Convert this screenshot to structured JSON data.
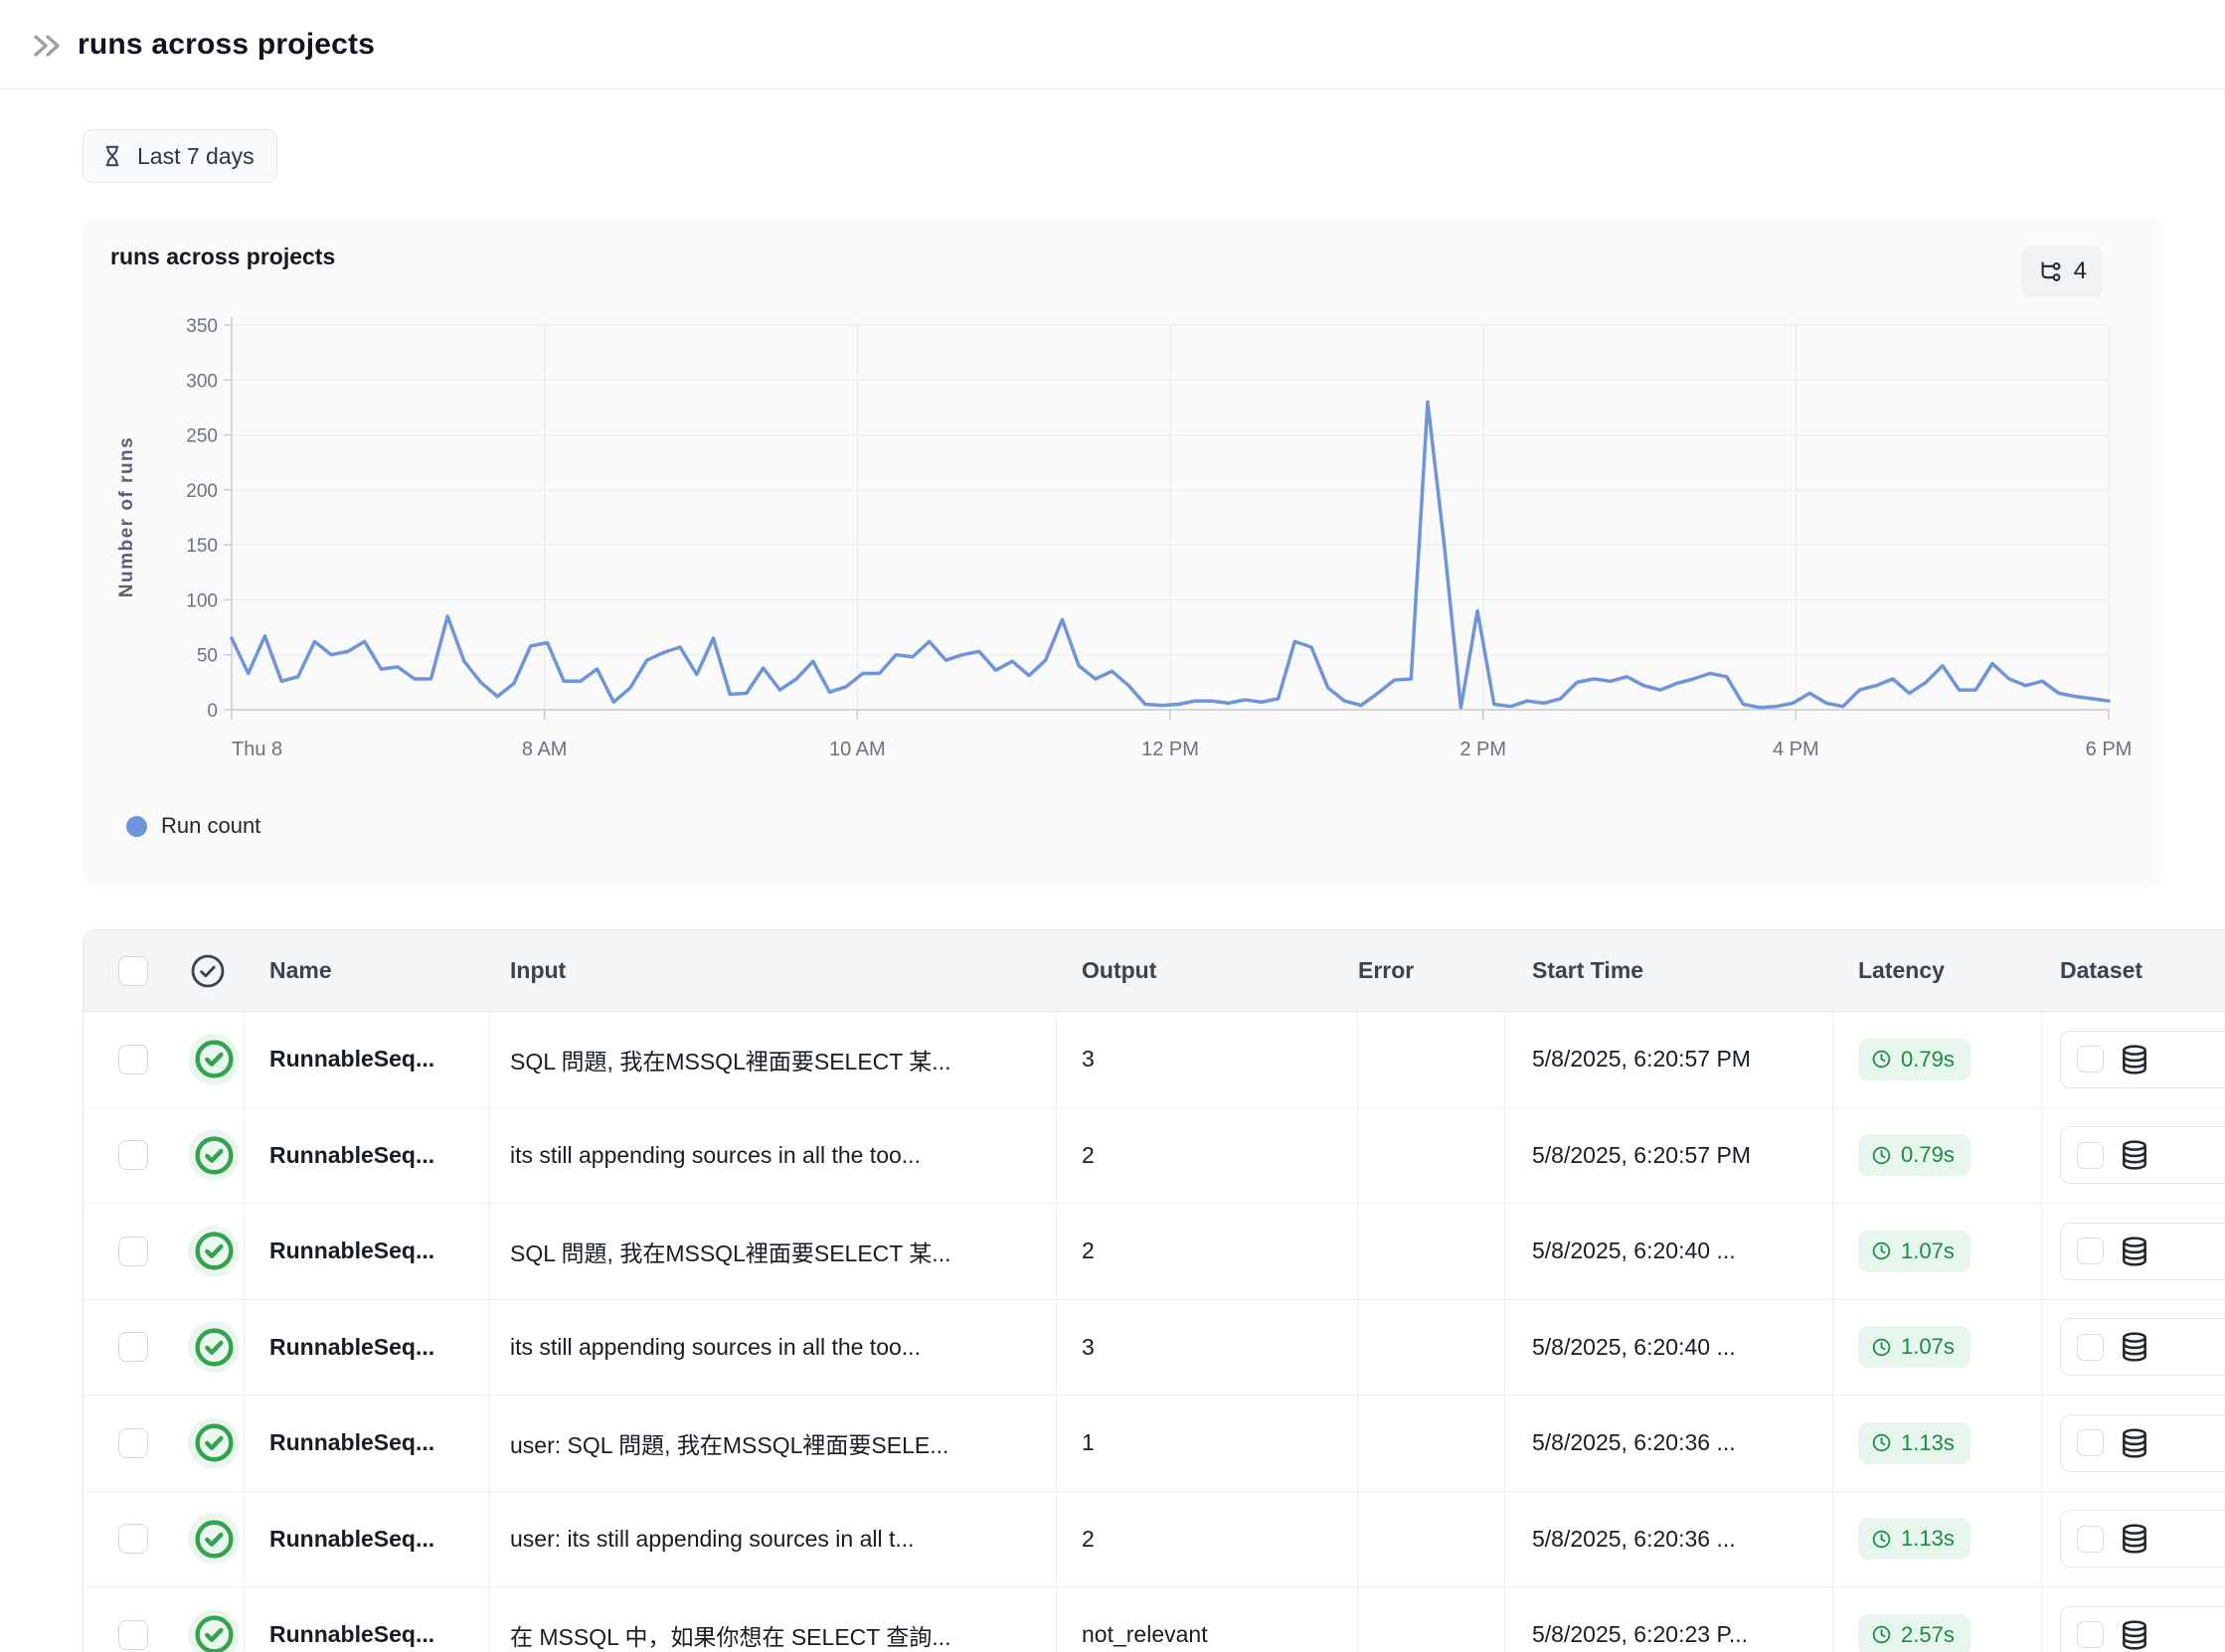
{
  "topbar": {
    "title": "runs across projects"
  },
  "toolbar": {
    "time_filter_label": "Last 7 days"
  },
  "chart_card": {
    "title": "runs across projects",
    "trace_badge_count": "4"
  },
  "chart_data": {
    "type": "line",
    "title": "runs across projects",
    "xlabel": "",
    "ylabel": "Number of runs",
    "ylim": [
      0,
      350
    ],
    "yticks": [
      0,
      50,
      100,
      150,
      200,
      250,
      300,
      350
    ],
    "xticks": [
      "Thu 8",
      "8 AM",
      "10 AM",
      "12 PM",
      "2 PM",
      "4 PM",
      "6 PM"
    ],
    "grid": true,
    "legend_position": "bottom",
    "series": [
      {
        "name": "Run count",
        "color": "#6e95da",
        "values": [
          65,
          33,
          67,
          26,
          30,
          62,
          50,
          53,
          62,
          37,
          39,
          28,
          28,
          85,
          44,
          25,
          12,
          24,
          58,
          61,
          26,
          26,
          37,
          7,
          20,
          45,
          52,
          57,
          32,
          65,
          14,
          15,
          38,
          18,
          28,
          44,
          16,
          21,
          33,
          33,
          50,
          48,
          62,
          45,
          50,
          53,
          36,
          44,
          31,
          45,
          82,
          40,
          28,
          35,
          22,
          5,
          4,
          5,
          8,
          8,
          6,
          9,
          7,
          10,
          62,
          57,
          20,
          8,
          4,
          15,
          27,
          28,
          280,
          150,
          2,
          90,
          5,
          3,
          8,
          6,
          10,
          25,
          28,
          26,
          30,
          22,
          18,
          24,
          28,
          33,
          30,
          5,
          2,
          3,
          6,
          15,
          6,
          3,
          18,
          22,
          28,
          15,
          25,
          40,
          18,
          18,
          42,
          28,
          22,
          26,
          15,
          12,
          10,
          8
        ]
      }
    ]
  },
  "table": {
    "columns": {
      "name": "Name",
      "input": "Input",
      "output": "Output",
      "error": "Error",
      "start_time": "Start Time",
      "latency": "Latency",
      "dataset": "Dataset"
    },
    "rows": [
      {
        "name": "RunnableSeq...",
        "input": "SQL 問題, 我在MSSQL裡面要SELECT 某...",
        "output": "3",
        "error": "",
        "start_time": "5/8/2025, 6:20:57 PM",
        "latency": "0.79s"
      },
      {
        "name": "RunnableSeq...",
        "input": "its still appending sources in all the too...",
        "output": "2",
        "error": "",
        "start_time": "5/8/2025, 6:20:57 PM",
        "latency": "0.79s"
      },
      {
        "name": "RunnableSeq...",
        "input": "SQL 問題, 我在MSSQL裡面要SELECT 某...",
        "output": "2",
        "error": "",
        "start_time": "5/8/2025, 6:20:40 ...",
        "latency": "1.07s"
      },
      {
        "name": "RunnableSeq...",
        "input": "its still appending sources in all the too...",
        "output": "3",
        "error": "",
        "start_time": "5/8/2025, 6:20:40 ...",
        "latency": "1.07s"
      },
      {
        "name": "RunnableSeq...",
        "input": "user: SQL 問題, 我在MSSQL裡面要SELE...",
        "output": "1",
        "error": "",
        "start_time": "5/8/2025, 6:20:36 ...",
        "latency": "1.13s"
      },
      {
        "name": "RunnableSeq...",
        "input": "user: its still appending sources in all t...",
        "output": "2",
        "error": "",
        "start_time": "5/8/2025, 6:20:36 ...",
        "latency": "1.13s"
      },
      {
        "name": "RunnableSeq...",
        "input": "在 MSSQL 中，如果你想在 SELECT 查詢...",
        "output": "not_relevant",
        "error": "",
        "start_time": "5/8/2025, 6:20:23 P...",
        "latency": "2.57s"
      }
    ]
  },
  "colors": {
    "line": "#6e95da",
    "status_green": "#35a24f",
    "latency_text": "#1b8a44",
    "latency_bg": "#e7f6ec",
    "card_bg": "#fafafa",
    "header_bg": "#f4f5f6"
  }
}
